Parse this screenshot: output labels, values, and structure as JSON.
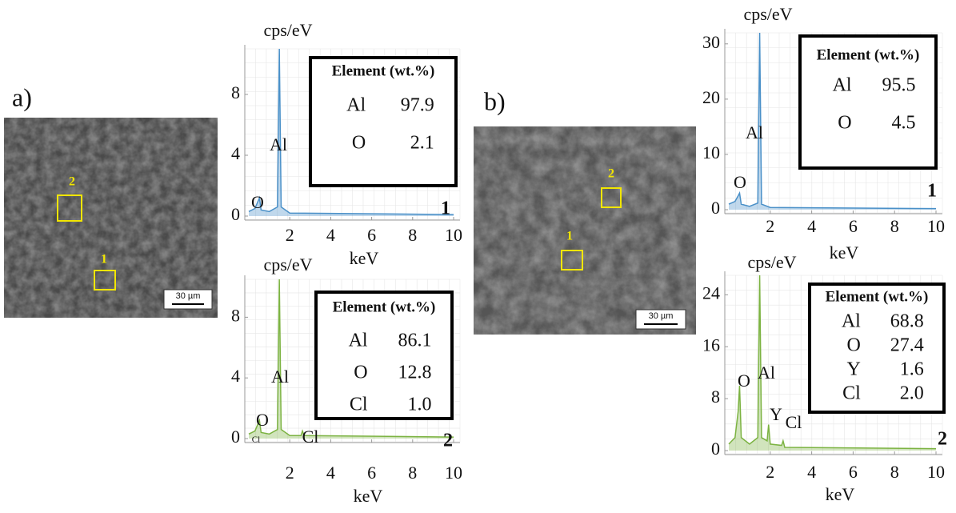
{
  "chart_data": [
    {
      "type": "line",
      "y_label": "cps/eV",
      "x_label": "keV",
      "x": [
        0,
        0.3,
        0.52,
        0.6,
        1.0,
        1.4,
        1.49,
        1.58,
        2.0,
        10
      ],
      "values": [
        0.3,
        0.5,
        1.2,
        0.4,
        0.3,
        0.6,
        11,
        0.6,
        0.2,
        0.1
      ],
      "color": "#4a90c8",
      "xlim": [
        0,
        10
      ],
      "ylim": [
        0,
        11
      ],
      "xticks": [
        2,
        4,
        6,
        8,
        10
      ],
      "yticks": [
        0,
        4,
        8
      ],
      "grid": true,
      "annotations": [
        "O",
        "Al"
      ],
      "spectrum_label": "1",
      "table": {
        "header": "Element (wt.%)",
        "rows": [
          [
            "Al",
            "97.9"
          ],
          [
            "O",
            "2.1"
          ]
        ]
      }
    },
    {
      "type": "line",
      "y_label": "cps/eV",
      "x_label": "keV",
      "x": [
        0,
        0.3,
        0.52,
        0.6,
        1.0,
        1.4,
        1.49,
        1.58,
        2.0,
        2.55,
        2.62,
        2.7,
        10
      ],
      "values": [
        0.3,
        0.5,
        1.2,
        0.4,
        0.3,
        0.6,
        10.5,
        0.6,
        0.2,
        0.2,
        0.5,
        0.2,
        0.1
      ],
      "color": "#7cb342",
      "xlim": [
        0,
        10
      ],
      "ylim": [
        0,
        10.5
      ],
      "xticks": [
        2,
        4,
        6,
        8,
        10
      ],
      "yticks": [
        0,
        4,
        8
      ],
      "grid": true,
      "annotations": [
        "Cl",
        "O",
        "Al",
        "Cl"
      ],
      "spectrum_label": "2",
      "table": {
        "header": "Element (wt.%)",
        "rows": [
          [
            "Al",
            "86.1"
          ],
          [
            "O",
            "12.8"
          ],
          [
            "Cl",
            "1.0"
          ]
        ]
      }
    },
    {
      "type": "line",
      "y_label": "cps/eV",
      "x_label": "keV",
      "x": [
        0,
        0.3,
        0.45,
        0.52,
        0.6,
        1.0,
        1.4,
        1.49,
        1.58,
        2.0,
        10
      ],
      "values": [
        1,
        1.5,
        2.5,
        3,
        1,
        0.6,
        1.2,
        32,
        1,
        0.4,
        0.2
      ],
      "color": "#4a90c8",
      "xlim": [
        0,
        10
      ],
      "ylim": [
        0,
        32
      ],
      "xticks": [
        2,
        4,
        6,
        8,
        10
      ],
      "yticks": [
        0,
        10,
        20,
        30
      ],
      "grid": true,
      "annotations": [
        "O",
        "Al"
      ],
      "spectrum_label": "1",
      "table": {
        "header": "Element (wt.%)",
        "rows": [
          [
            "Al",
            "95.5"
          ],
          [
            "O",
            "4.5"
          ]
        ]
      }
    },
    {
      "type": "line",
      "y_label": "cps/eV",
      "x_label": "keV",
      "x": [
        0,
        0.3,
        0.45,
        0.52,
        0.6,
        1.0,
        1.4,
        1.49,
        1.58,
        1.85,
        1.92,
        2.0,
        2.55,
        2.62,
        2.7,
        10
      ],
      "values": [
        1,
        2,
        6,
        10,
        2,
        1,
        2,
        27,
        2,
        1.5,
        4,
        1,
        0.8,
        1.5,
        0.5,
        0.3
      ],
      "color": "#7cb342",
      "xlim": [
        0,
        10
      ],
      "ylim": [
        0,
        27
      ],
      "xticks": [
        2,
        4,
        6,
        8,
        10
      ],
      "yticks": [
        0,
        8,
        16,
        24
      ],
      "grid": true,
      "annotations": [
        "O",
        "Al",
        "Y",
        "Cl"
      ],
      "spectrum_label": "2",
      "table": {
        "header": "Element (wt.%)",
        "rows": [
          [
            "Al",
            "68.8"
          ],
          [
            "O",
            "27.4"
          ],
          [
            "Y",
            "1.6"
          ],
          [
            "Cl",
            "2.0"
          ]
        ]
      }
    }
  ],
  "images": [
    {
      "label": "a)",
      "scale_bar": "30 µm",
      "regions": [
        "1",
        "2"
      ]
    },
    {
      "label": "b)",
      "scale_bar": "30 µm",
      "regions": [
        "1",
        "2"
      ]
    }
  ]
}
